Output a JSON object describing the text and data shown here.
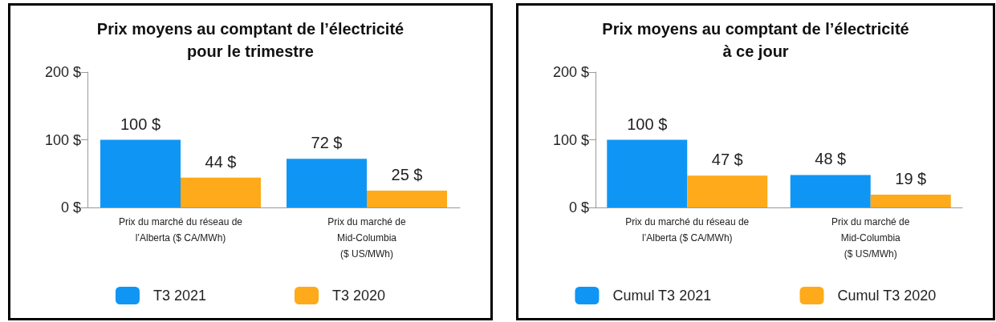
{
  "chart_data": [
    {
      "type": "bar",
      "title": "Prix moyens au comptant de l’électricité\npour le trimestre",
      "categories": [
        "Prix du marché du réseau de\nl’Alberta ($ CA/MWh)",
        "Prix du marché de\nMid-Columbia\n($ US/MWh)"
      ],
      "series": [
        {
          "name": "T3 2021",
          "color": "#0f96f5",
          "values": [
            100,
            72
          ],
          "value_labels": [
            "100 $",
            "72 $"
          ]
        },
        {
          "name": "T3 2020",
          "color": "#ffaa1a",
          "values": [
            44,
            25
          ],
          "value_labels": [
            "44 $",
            "25 $"
          ]
        }
      ],
      "ylim": [
        0,
        200
      ],
      "yticks": [
        {
          "value": 0,
          "label": "0 $"
        },
        {
          "value": 100,
          "label": "100 $"
        },
        {
          "value": 200,
          "label": "200 $"
        }
      ],
      "grid": false,
      "legend": "bottom"
    },
    {
      "type": "bar",
      "title": "Prix moyens au comptant de l’électricité\nà ce jour",
      "categories": [
        "Prix du marché du réseau de\nl’Alberta ($ CA/MWh)",
        "Prix du marché de\nMid-Columbia\n($ US/MWh)"
      ],
      "series": [
        {
          "name": "Cumul T3 2021",
          "color": "#0f96f5",
          "values": [
            100,
            48
          ],
          "value_labels": [
            "100 $",
            "48 $"
          ]
        },
        {
          "name": "Cumul T3 2020",
          "color": "#ffaa1a",
          "values": [
            47,
            19
          ],
          "value_labels": [
            "47 $",
            "19 $"
          ]
        }
      ],
      "ylim": [
        0,
        200
      ],
      "yticks": [
        {
          "value": 0,
          "label": "0 $"
        },
        {
          "value": 100,
          "label": "100 $"
        },
        {
          "value": 200,
          "label": "200 $"
        }
      ],
      "grid": false,
      "legend": "bottom"
    }
  ]
}
